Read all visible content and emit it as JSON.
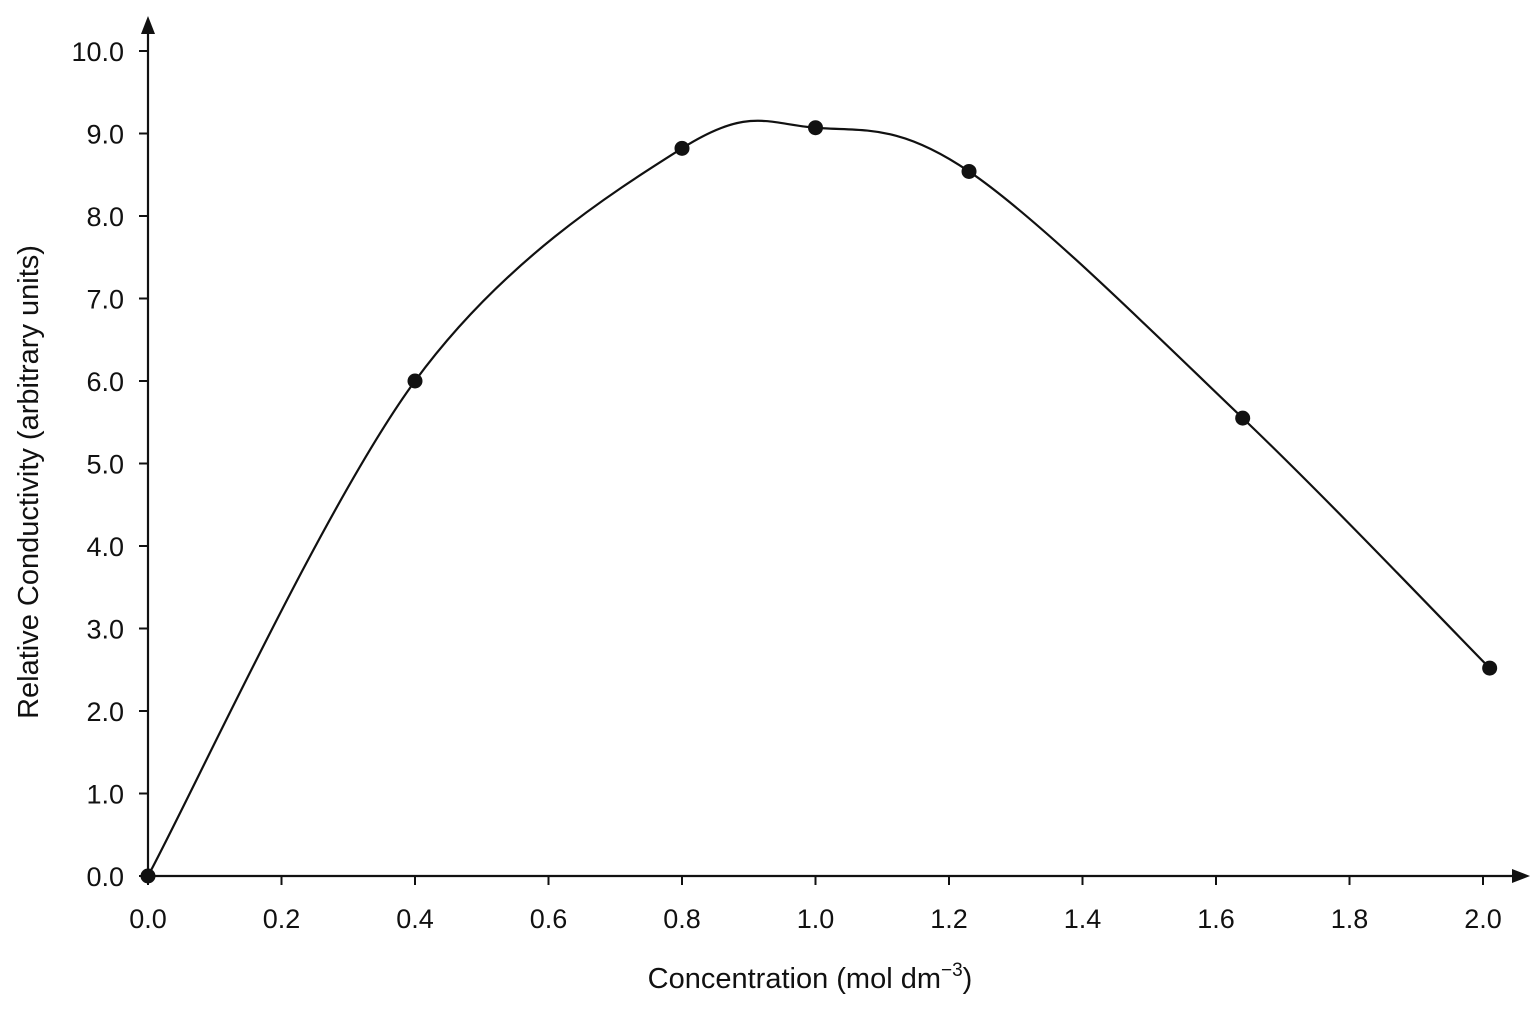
{
  "chart_data": {
    "type": "line",
    "title": "",
    "xlabel": "Concentration (mol dm",
    "xlabel_sup": "−3",
    "xlabel_close": ")",
    "ylabel": "Relative Conductivity (arbitrary units)",
    "xlim": [
      0.0,
      2.0
    ],
    "ylim": [
      0.0,
      10.0
    ],
    "x_ticks": [
      "0.0",
      "0.2",
      "0.4",
      "0.6",
      "0.8",
      "1.0",
      "1.2",
      "1.4",
      "1.6",
      "1.8",
      "2.0"
    ],
    "y_ticks": [
      "0.0",
      "1.0",
      "2.0",
      "3.0",
      "4.0",
      "5.0",
      "6.0",
      "7.0",
      "8.0",
      "9.0",
      "10.0"
    ],
    "grid": false,
    "legend": "none",
    "smooth": true,
    "series": [
      {
        "x": [
          0.0,
          0.4,
          0.8,
          1.0,
          1.23,
          1.64,
          2.01
        ],
        "y": [
          0.0,
          6.0,
          8.82,
          9.07,
          8.54,
          5.55,
          2.52
        ]
      }
    ]
  }
}
